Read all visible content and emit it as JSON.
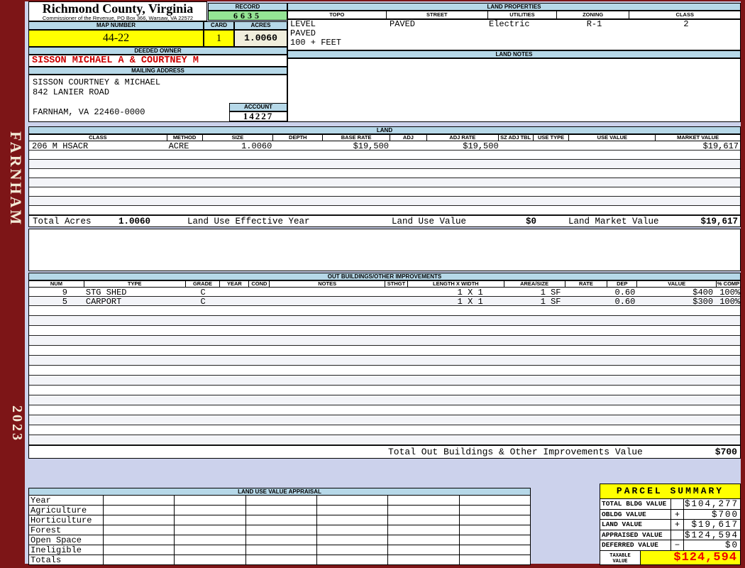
{
  "header": {
    "county": "Richmond County, Virginia",
    "commissioner": "Commissioner of the Revenue, PO Box 366, Warsaw, VA 22572"
  },
  "sidebar": {
    "district": "FARNHAM",
    "year": "2023"
  },
  "record": {
    "label": "RECORD",
    "value": "6635"
  },
  "map_number": {
    "label": "MAP NUMBER",
    "value": "44-22"
  },
  "card": {
    "label": "CARD",
    "value": "1"
  },
  "acres": {
    "label": "ACRES",
    "value": "1.0060"
  },
  "account": {
    "label": "ACCOUNT",
    "value": "14227"
  },
  "land_properties": {
    "title": "LAND PROPERTIES",
    "headers": [
      "TOPO",
      "STREET",
      "UTILITIES",
      "ZONING",
      "CLASS"
    ],
    "topo_lines": [
      "LEVEL",
      "PAVED",
      "100 + FEET"
    ],
    "street": "PAVED",
    "utilities": "Electric",
    "zoning": "R-1",
    "class": "2"
  },
  "owner": {
    "title": "DEEDED OWNER",
    "name": "SISSON MICHAEL A & COURTNEY M"
  },
  "mailing": {
    "title": "MAILING ADDRESS",
    "line1": "SISSON COURTNEY & MICHAEL",
    "line2": "842 LANIER ROAD",
    "line3": "FARNHAM, VA 22460-0000"
  },
  "land_notes": {
    "title": "LAND NOTES"
  },
  "land": {
    "title": "LAND",
    "headers": [
      "CLASS",
      "METHOD",
      "SIZE",
      "DEPTH",
      "BASE RATE",
      "ADJ",
      "ADJ RATE",
      "SZ ADJ TBL",
      "USE TYPE",
      "USE VALUE",
      "MARKET VALUE"
    ],
    "row": {
      "class": "206 M HSACR",
      "method": "ACRE",
      "size": "1.0060",
      "base_rate": "$19,500",
      "adj_rate": "$19,500",
      "market_value": "$19,617"
    },
    "empty_row_count": 7,
    "totals": {
      "total_acres_label": "Total Acres",
      "total_acres": "1.0060",
      "effective_year_label": "Land Use Effective Year",
      "use_value_label": "Land Use Value",
      "use_value": "$0",
      "market_value_label": "Land Market Value",
      "market_value": "$19,617"
    }
  },
  "out_buildings": {
    "title": "OUT BUILDINGS/OTHER IMPROVEMENTS",
    "headers": [
      "NUM",
      "TYPE",
      "GRADE",
      "YEAR",
      "COND",
      "NOTES",
      "STHGT",
      "LENGTH X WIDTH",
      "AREA/SIZE",
      "RATE",
      "DEP",
      "VALUE",
      "% COMP"
    ],
    "rows": [
      {
        "num": "9",
        "type": "STG SHED",
        "grade": "C",
        "length_width": "1 X 1",
        "area": "1 SF",
        "dep": "0.60",
        "value": "$400",
        "comp": "100%"
      },
      {
        "num": "5",
        "type": "CARPORT",
        "grade": "C",
        "length_width": "1 X 1",
        "area": "1 SF",
        "dep": "0.60",
        "value": "$300",
        "comp": "100%"
      }
    ],
    "empty_row_count": 14,
    "total_label": "Total Out Buildings & Other Improvements Value",
    "total_value": "$700"
  },
  "land_use_appraisal": {
    "title": "LAND USE VALUE APPRAISAL",
    "row_labels": [
      "Year",
      "Agriculture",
      "Horticulture",
      "Forest",
      "Open Space",
      "Ineligible",
      "Totals"
    ],
    "column_count": 6
  },
  "parcel_summary": {
    "title": "PARCEL SUMMARY",
    "rows": [
      {
        "label": "TOTAL BLDG VALUE",
        "sign": "",
        "value": "$104,277"
      },
      {
        "label": "OBLDG VALUE",
        "sign": "+",
        "value": "$700"
      },
      {
        "label": "LAND VALUE",
        "sign": "+",
        "value": "$19,617"
      },
      {
        "label": "APPRAISED VALUE",
        "sign": "",
        "value": "$124,594"
      },
      {
        "label": "DEFERRED VALUE",
        "sign": "−",
        "value": "$0"
      }
    ],
    "taxable_label_line1": "TAXABLE",
    "taxable_label_line2": "VALUE",
    "taxable_value": "$124,594"
  },
  "colors": {
    "maroon": "#7d1517",
    "band_blue": "#b6d8e8",
    "lavender": "#ccd2ec",
    "record_green": "#94e494",
    "highlight_yellow": "#ffff00",
    "acres_cream": "#f0eedc",
    "owner_red": "#cc0000",
    "taxable_red": "#ee0000"
  }
}
